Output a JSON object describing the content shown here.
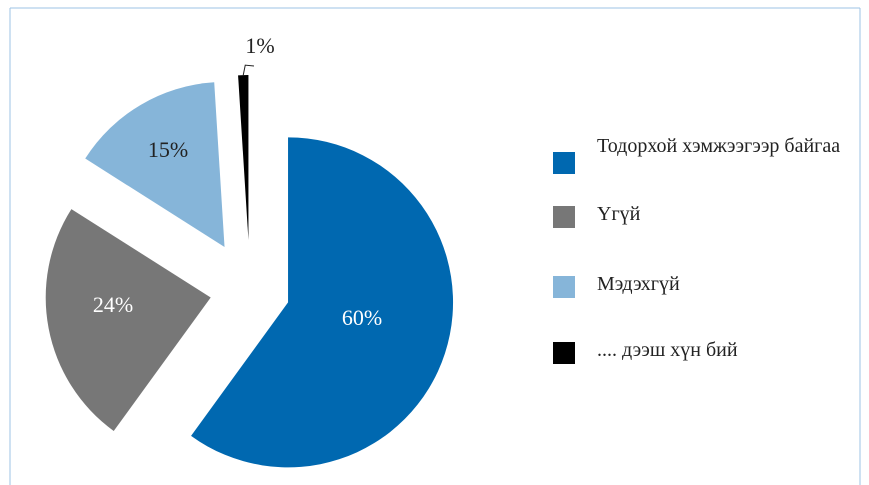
{
  "chart_data": {
    "type": "pie",
    "categories": [
      "Тодорхой хэмжээгээр байгаа",
      "Үгүй",
      "Мэдэхгүй",
      ".... дээш хүн бий"
    ],
    "values": [
      60,
      24,
      15,
      1
    ],
    "value_labels": [
      "60%",
      "24%",
      "15%",
      "1%"
    ],
    "colors": [
      "#0068b0",
      "#777777",
      "#86b5d9",
      "#000000"
    ],
    "legend": "right"
  }
}
